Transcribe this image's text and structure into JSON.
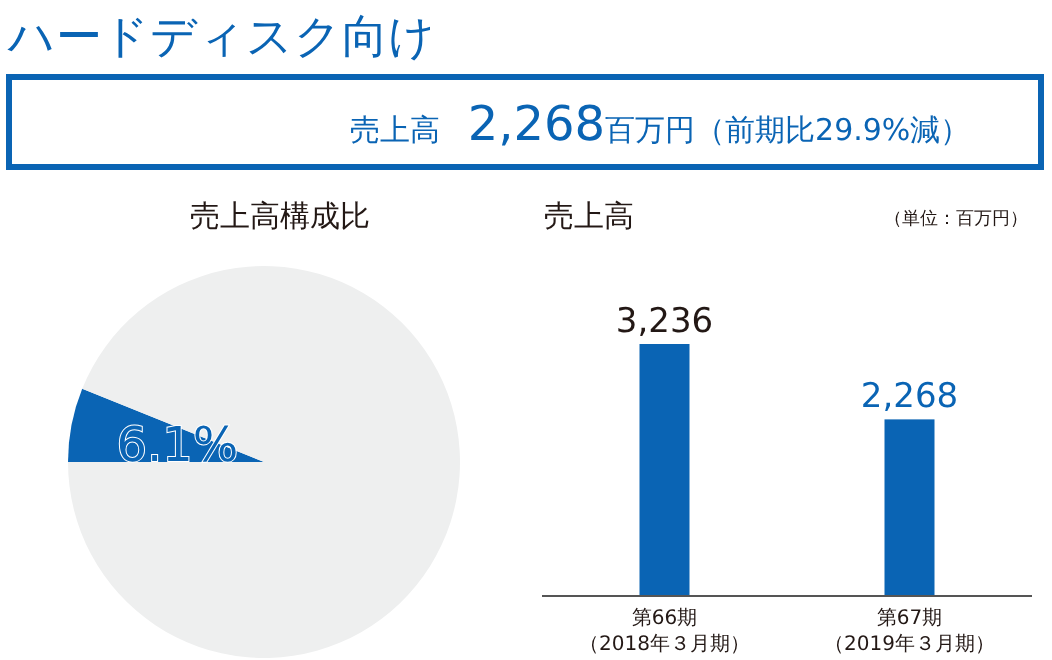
{
  "chart_data": [
    {
      "type": "other",
      "title": "ハードディスク向け",
      "annotations": [
        "売上高",
        "2,268",
        "百万円",
        "（前期比29.9%減）"
      ]
    },
    {
      "type": "pie",
      "title": "売上高構成比",
      "categories": [
        null,
        null
      ],
      "values": [
        6.1,
        93.9
      ],
      "colors": [
        "#0a64b4",
        "#eeefef"
      ],
      "value_labels": [
        "6.1%",
        null
      ]
    },
    {
      "type": "bar",
      "title": "売上高",
      "annotations": [
        "（単位：百万円）"
      ],
      "categories": [
        "第66期（2018年３月期）",
        "第67期（2019年３月期）"
      ],
      "values": [
        3236,
        2268
      ],
      "color": "#0a64b4",
      "value_labels": [
        "3,236",
        "2,268"
      ]
    }
  ]
}
